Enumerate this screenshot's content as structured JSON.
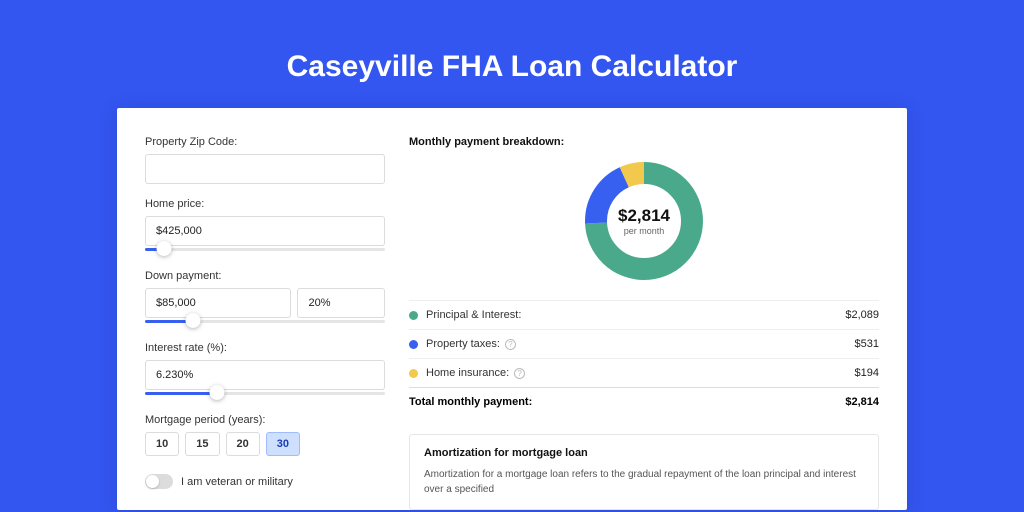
{
  "colors": {
    "page_bg": "#3355f0",
    "accent": "#3760f0",
    "green": "#4aa98a",
    "blue": "#3760f0",
    "yellow": "#f2c94c"
  },
  "title": "Caseyville FHA Loan Calculator",
  "form": {
    "zip": {
      "label": "Property Zip Code:",
      "value": ""
    },
    "home_price": {
      "label": "Home price:",
      "value": "$425,000",
      "slider_pct": 8
    },
    "down_payment": {
      "label": "Down payment:",
      "amount": "$85,000",
      "percent": "20%",
      "slider_pct": 20
    },
    "interest": {
      "label": "Interest rate (%):",
      "value": "6.230%",
      "slider_pct": 30
    },
    "period": {
      "label": "Mortgage period (years):",
      "options": [
        "10",
        "15",
        "20",
        "30"
      ],
      "selected": "30"
    },
    "veteran": {
      "label": "I am veteran or military",
      "checked": false
    }
  },
  "breakdown": {
    "title": "Monthly payment breakdown:",
    "center_amount": "$2,814",
    "center_sub": "per month",
    "donut": {
      "radius": 48,
      "stroke_width": 22,
      "slices": [
        {
          "key": "pi",
          "color": "#4aa98a",
          "fraction": 0.742
        },
        {
          "key": "tax",
          "color": "#3760f0",
          "fraction": 0.189
        },
        {
          "key": "ins",
          "color": "#f2c94c",
          "fraction": 0.069
        }
      ]
    },
    "rows": [
      {
        "dot": "#4aa98a",
        "label": "Principal & Interest:",
        "info": false,
        "value": "$2,089"
      },
      {
        "dot": "#3760f0",
        "label": "Property taxes:",
        "info": true,
        "value": "$531"
      },
      {
        "dot": "#f2c94c",
        "label": "Home insurance:",
        "info": true,
        "value": "$194"
      }
    ],
    "total": {
      "label": "Total monthly payment:",
      "value": "$2,814"
    }
  },
  "amortization": {
    "title": "Amortization for mortgage loan",
    "text": "Amortization for a mortgage loan refers to the gradual repayment of the loan principal and interest over a specified"
  }
}
